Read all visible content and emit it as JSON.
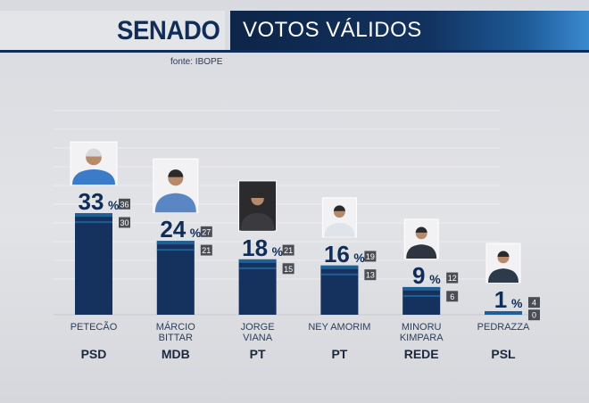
{
  "header": {
    "title": "SENADO",
    "subtitle": "VOTOS VÁLIDOS"
  },
  "source": "fonte: IBOPE",
  "colors": {
    "navy": "#0f2d57",
    "bar": "#15325e",
    "band": "#1e5f97",
    "accent": "#3a8ad0"
  },
  "chart_data": {
    "type": "bar",
    "title": "VOTOS VÁLIDOS",
    "ylim": [
      0,
      40
    ],
    "unit": "%",
    "categories": [
      "PETECÃO",
      "MÁRCIO BITTAR",
      "JORGE VIANA",
      "NEY AMORIM",
      "MINORU KIMPARA",
      "PEDRAZZA"
    ],
    "name_lines": [
      [
        "PETECÃO"
      ],
      [
        "MÁRCIO",
        "BITTAR"
      ],
      [
        "JORGE",
        "VIANA"
      ],
      [
        "NEY AMORIM"
      ],
      [
        "MINORU",
        "KIMPARA"
      ],
      [
        "PEDRAZZA"
      ]
    ],
    "parties": [
      "PSD",
      "MDB",
      "PT",
      "PT",
      "REDE",
      "PSL"
    ],
    "values": [
      33,
      24,
      18,
      16,
      9,
      1
    ],
    "value_labels": [
      "33",
      "24",
      "18",
      "16",
      "9",
      "1"
    ],
    "range_high": [
      36,
      27,
      21,
      19,
      12,
      4
    ],
    "range_low": [
      30,
      21,
      15,
      13,
      6,
      0
    ],
    "photos": [
      "candidate-photo-petecao",
      "candidate-photo-marcio-bittar",
      "candidate-photo-jorge-viana",
      "candidate-photo-ney-amorim",
      "candidate-photo-minoru-kimpara",
      "candidate-photo-pedrazza"
    ]
  }
}
